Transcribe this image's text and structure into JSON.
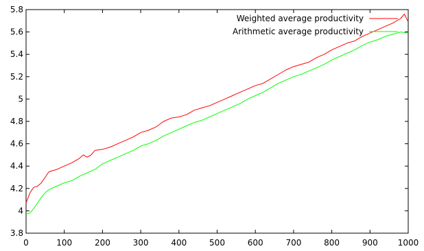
{
  "chart_data": {
    "type": "line",
    "title": "",
    "xlabel": "",
    "ylabel": "",
    "xlim": [
      0,
      1000
    ],
    "ylim": [
      3.8,
      5.8
    ],
    "x_ticks": [
      0,
      100,
      200,
      300,
      400,
      500,
      600,
      700,
      800,
      900,
      1000
    ],
    "y_ticks": [
      3.8,
      4,
      4.2,
      4.4,
      4.6,
      4.8,
      5,
      5.2,
      5.4,
      5.6,
      5.8
    ],
    "x_tick_labels": [
      "0",
      "100",
      "200",
      "300",
      "400",
      "500",
      "600",
      "700",
      "800",
      "900",
      "1000"
    ],
    "y_tick_labels": [
      "3.8",
      "4",
      "4.2",
      "4.4",
      "4.6",
      "4.8",
      "5",
      "5.2",
      "5.4",
      "5.6",
      "5.8"
    ],
    "grid": false,
    "legend_position": "top-right",
    "series": [
      {
        "name": "Weighted average productivity",
        "color": "#ff0000",
        "x": [
          0,
          10,
          20,
          30,
          40,
          50,
          60,
          80,
          100,
          120,
          140,
          150,
          160,
          170,
          180,
          200,
          220,
          240,
          260,
          280,
          300,
          320,
          340,
          360,
          380,
          400,
          420,
          440,
          460,
          480,
          500,
          520,
          540,
          560,
          580,
          600,
          620,
          640,
          660,
          680,
          700,
          720,
          740,
          760,
          780,
          800,
          820,
          840,
          860,
          880,
          900,
          920,
          940,
          960,
          980,
          990,
          1000
        ],
        "values": [
          4.07,
          4.16,
          4.21,
          4.22,
          4.25,
          4.3,
          4.35,
          4.37,
          4.4,
          4.43,
          4.47,
          4.5,
          4.48,
          4.5,
          4.54,
          4.55,
          4.57,
          4.6,
          4.63,
          4.66,
          4.7,
          4.72,
          4.75,
          4.8,
          4.83,
          4.84,
          4.86,
          4.9,
          4.92,
          4.94,
          4.97,
          5.0,
          5.03,
          5.06,
          5.09,
          5.12,
          5.14,
          5.18,
          5.22,
          5.26,
          5.29,
          5.31,
          5.33,
          5.37,
          5.4,
          5.44,
          5.47,
          5.5,
          5.52,
          5.56,
          5.59,
          5.62,
          5.65,
          5.68,
          5.72,
          5.76,
          5.69
        ]
      },
      {
        "name": "Arithmetic average productivity",
        "color": "#00ff00",
        "x": [
          0,
          10,
          20,
          30,
          40,
          50,
          60,
          80,
          100,
          120,
          140,
          160,
          180,
          200,
          220,
          240,
          260,
          280,
          300,
          320,
          340,
          360,
          380,
          400,
          420,
          440,
          460,
          480,
          500,
          520,
          540,
          560,
          580,
          600,
          620,
          640,
          660,
          680,
          700,
          720,
          740,
          760,
          780,
          800,
          820,
          840,
          860,
          880,
          900,
          920,
          940,
          960,
          980,
          1000
        ],
        "values": [
          3.97,
          3.98,
          4.02,
          4.07,
          4.12,
          4.16,
          4.19,
          4.22,
          4.25,
          4.27,
          4.31,
          4.34,
          4.37,
          4.42,
          4.45,
          4.48,
          4.51,
          4.54,
          4.58,
          4.6,
          4.63,
          4.67,
          4.7,
          4.73,
          4.76,
          4.79,
          4.81,
          4.84,
          4.87,
          4.9,
          4.93,
          4.96,
          5.0,
          5.03,
          5.06,
          5.1,
          5.14,
          5.17,
          5.2,
          5.22,
          5.25,
          5.28,
          5.31,
          5.35,
          5.38,
          5.41,
          5.44,
          5.48,
          5.51,
          5.53,
          5.56,
          5.58,
          5.6,
          5.59
        ]
      }
    ]
  }
}
